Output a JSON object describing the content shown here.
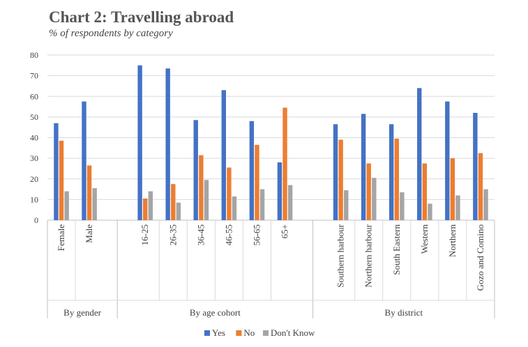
{
  "title": "Chart 2: Travelling abroad",
  "subtitle": "% of respondents by category",
  "colors": {
    "Yes": "#4472C4",
    "No": "#ED7D31",
    "Don't Know": "#A5A5A5"
  },
  "chart_data": {
    "type": "bar",
    "ylim": [
      0,
      80
    ],
    "yticks": [
      0,
      10,
      20,
      30,
      40,
      50,
      60,
      70,
      80
    ],
    "grid": true,
    "legend_position": "bottom",
    "groups": [
      {
        "label": "By gender",
        "categories": [
          "Female",
          "Male"
        ]
      },
      {
        "label": "By age cohort",
        "categories": [
          "16-25",
          "26-35",
          "36-45",
          "46-55",
          "56-65",
          "65+"
        ]
      },
      {
        "label": "By district",
        "categories": [
          "Southern harbour",
          "Northern harbour",
          "South Eastern",
          "Western",
          "Northern",
          "Gozo and Comino"
        ]
      }
    ],
    "categories": [
      "Female",
      "Male",
      "16-25",
      "26-35",
      "36-45",
      "46-55",
      "56-65",
      "65+",
      "Southern harbour",
      "Northern harbour",
      "South Eastern",
      "Western",
      "Northern",
      "Gozo and Comino"
    ],
    "series": [
      {
        "name": "Yes",
        "values": [
          47,
          57.5,
          75,
          73.5,
          48.5,
          63,
          48,
          28,
          46.5,
          51.5,
          46.5,
          64,
          57.5,
          52
        ]
      },
      {
        "name": "No",
        "values": [
          38.5,
          26.5,
          10.5,
          17.5,
          31.5,
          25.5,
          36.5,
          54.5,
          39,
          27.5,
          39.5,
          27.5,
          30,
          32.5
        ]
      },
      {
        "name": "Don't Know",
        "values": [
          14,
          15.5,
          14,
          8.5,
          19.5,
          11.5,
          15,
          17,
          14.5,
          20.5,
          13.5,
          8,
          12,
          15
        ]
      }
    ]
  }
}
